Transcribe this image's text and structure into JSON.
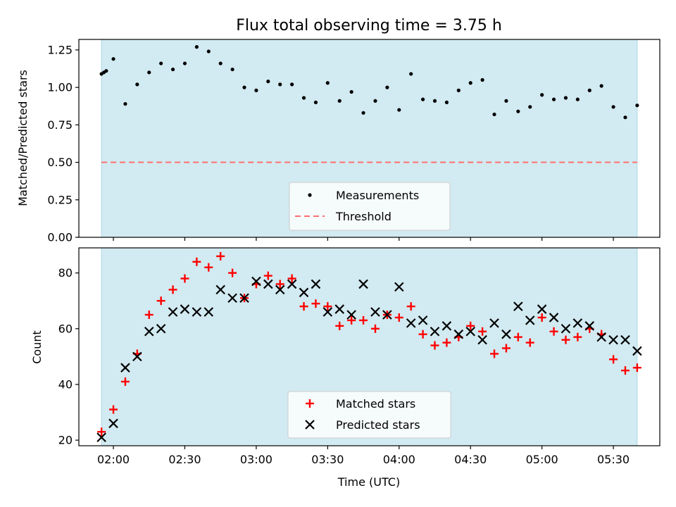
{
  "title": "Flux total observing time = 3.75 h",
  "colors": {
    "shade": "#add8e6",
    "threshold": "#ff6f6f",
    "matched": "#ff0000",
    "predicted": "#000000"
  },
  "chart_data": [
    {
      "type": "scatter",
      "ylabel": "Matched/Predicted stars",
      "xlabel": "",
      "ylim": [
        0,
        1.32
      ],
      "yticks": [
        "0.00",
        "0.25",
        "0.50",
        "0.75",
        "1.00",
        "1.25"
      ],
      "threshold": 0.5,
      "legend": [
        "Measurements",
        "Threshold"
      ],
      "legend_position": "lower center",
      "shaded_span": [
        "01:55",
        "05:40"
      ],
      "series": [
        {
          "name": "Measurements",
          "x": [
            "01:55",
            "01:56",
            "01:57",
            "02:00",
            "02:05",
            "02:10",
            "02:15",
            "02:20",
            "02:25",
            "02:30",
            "02:35",
            "02:40",
            "02:45",
            "02:50",
            "02:55",
            "03:00",
            "03:05",
            "03:10",
            "03:15",
            "03:20",
            "03:25",
            "03:30",
            "03:35",
            "03:40",
            "03:45",
            "03:50",
            "03:55",
            "04:00",
            "04:05",
            "04:10",
            "04:15",
            "04:20",
            "04:25",
            "04:30",
            "04:35",
            "04:40",
            "04:45",
            "04:50",
            "04:55",
            "05:00",
            "05:05",
            "05:10",
            "05:15",
            "05:20",
            "05:25",
            "05:30",
            "05:35",
            "05:40"
          ],
          "y": [
            1.09,
            1.1,
            1.11,
            1.19,
            0.89,
            1.02,
            1.1,
            1.16,
            1.12,
            1.16,
            1.27,
            1.24,
            1.16,
            1.12,
            1.0,
            0.98,
            1.04,
            1.02,
            1.02,
            0.93,
            0.9,
            1.03,
            0.91,
            0.97,
            0.83,
            0.91,
            1.0,
            0.85,
            1.09,
            0.92,
            0.91,
            0.9,
            0.98,
            1.03,
            1.05,
            0.82,
            0.91,
            0.84,
            0.87,
            0.95,
            0.92,
            0.93,
            0.92,
            0.98,
            1.01,
            0.87,
            0.8,
            0.88
          ]
        }
      ]
    },
    {
      "type": "scatter",
      "ylabel": "Count",
      "xlabel": "Time (UTC)",
      "ylim": [
        18,
        89
      ],
      "yticks": [
        "20",
        "40",
        "60",
        "80"
      ],
      "xticks": [
        "02:00",
        "02:30",
        "03:00",
        "03:30",
        "04:00",
        "04:30",
        "05:00",
        "05:30"
      ],
      "legend": [
        "Matched stars",
        "Predicted stars"
      ],
      "legend_position": "lower center",
      "shaded_span": [
        "01:55",
        "05:40"
      ],
      "series": [
        {
          "name": "Matched stars",
          "x": [
            "01:55",
            "02:00",
            "02:05",
            "02:10",
            "02:15",
            "02:20",
            "02:25",
            "02:30",
            "02:35",
            "02:40",
            "02:45",
            "02:50",
            "02:55",
            "03:00",
            "03:05",
            "03:10",
            "03:15",
            "03:20",
            "03:25",
            "03:30",
            "03:35",
            "03:40",
            "03:45",
            "03:50",
            "03:55",
            "04:00",
            "04:05",
            "04:10",
            "04:15",
            "04:20",
            "04:25",
            "04:30",
            "04:35",
            "04:40",
            "04:45",
            "04:50",
            "04:55",
            "05:00",
            "05:05",
            "05:10",
            "05:15",
            "05:20",
            "05:25",
            "05:30",
            "05:35",
            "05:40"
          ],
          "y": [
            23,
            31,
            41,
            51,
            65,
            70,
            74,
            78,
            84,
            82,
            86,
            80,
            71,
            76,
            79,
            76,
            78,
            68,
            69,
            68,
            61,
            63,
            63,
            60,
            65,
            64,
            68,
            58,
            54,
            55,
            57,
            61,
            59,
            51,
            53,
            57,
            55,
            64,
            59,
            56,
            57,
            60,
            58,
            49,
            45,
            46
          ]
        },
        {
          "name": "Predicted stars",
          "x": [
            "01:55",
            "02:00",
            "02:05",
            "02:10",
            "02:15",
            "02:20",
            "02:25",
            "02:30",
            "02:35",
            "02:40",
            "02:45",
            "02:50",
            "02:55",
            "03:00",
            "03:05",
            "03:10",
            "03:15",
            "03:20",
            "03:25",
            "03:30",
            "03:35",
            "03:40",
            "03:45",
            "03:50",
            "03:55",
            "04:00",
            "04:05",
            "04:10",
            "04:15",
            "04:20",
            "04:25",
            "04:30",
            "04:35",
            "04:40",
            "04:45",
            "04:50",
            "04:55",
            "05:00",
            "05:05",
            "05:10",
            "05:15",
            "05:20",
            "05:25",
            "05:30",
            "05:35",
            "05:40"
          ],
          "y": [
            21,
            26,
            46,
            50,
            59,
            60,
            66,
            67,
            66,
            66,
            74,
            71,
            71,
            77,
            76,
            74,
            76,
            73,
            76,
            66,
            67,
            65,
            76,
            66,
            65,
            75,
            62,
            63,
            59,
            61,
            58,
            59,
            56,
            62,
            58,
            68,
            63,
            67,
            64,
            60,
            62,
            61,
            57,
            56,
            56,
            52
          ]
        }
      ]
    }
  ]
}
